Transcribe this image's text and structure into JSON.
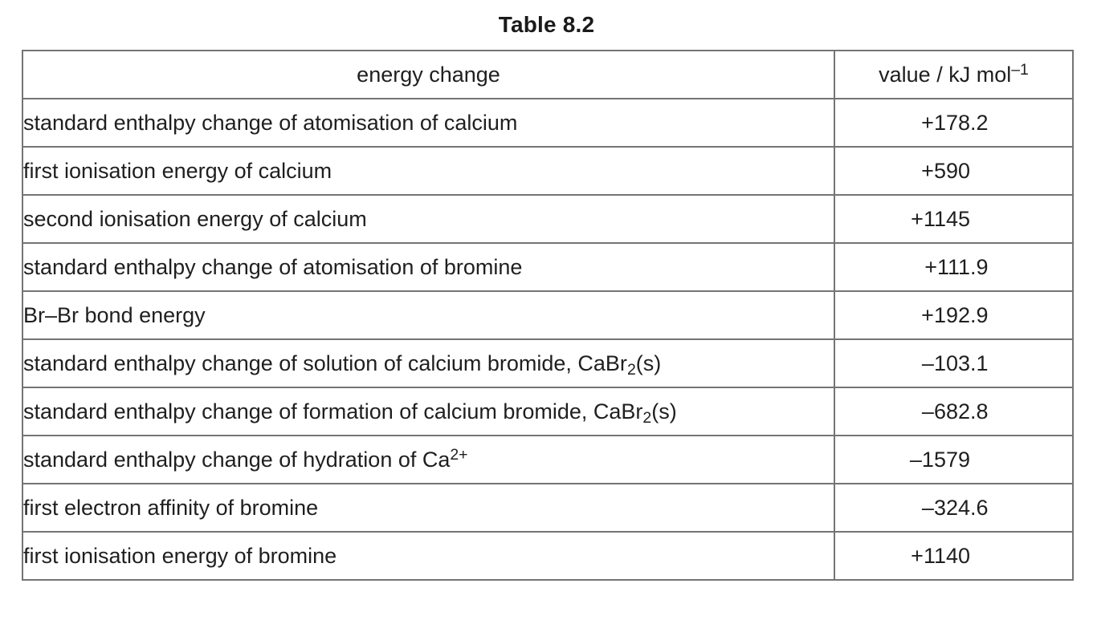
{
  "title": "Table 8.2",
  "colors": {
    "text": "#1f1f1f",
    "grid_lines": "#747476",
    "background": "#ffffff"
  },
  "table": {
    "header": {
      "energy_change": "energy change",
      "value_parts": [
        {
          "text": "value / kJ mol",
          "style": "n"
        },
        {
          "text": "–1",
          "style": "sup"
        }
      ]
    },
    "rows": [
      {
        "label_parts": [
          {
            "text": "standard enthalpy change of atomisation of calcium",
            "style": "n"
          }
        ],
        "value": "+178.2"
      },
      {
        "label_parts": [
          {
            "text": "first ionisation energy of calcium",
            "style": "n"
          }
        ],
        "value": "+590"
      },
      {
        "label_parts": [
          {
            "text": "second ionisation energy of calcium",
            "style": "n"
          }
        ],
        "value": "+1145"
      },
      {
        "label_parts": [
          {
            "text": "standard enthalpy change of atomisation of bromine",
            "style": "n"
          }
        ],
        "value": "+111.9"
      },
      {
        "label_parts": [
          {
            "text": "Br–Br bond energy",
            "style": "n"
          }
        ],
        "value": "+192.9"
      },
      {
        "label_parts": [
          {
            "text": "standard enthalpy change of solution of calcium bromide, CaBr",
            "style": "n"
          },
          {
            "text": "2",
            "style": "sub"
          },
          {
            "text": "(s)",
            "style": "n"
          }
        ],
        "value": "–103.1"
      },
      {
        "label_parts": [
          {
            "text": "standard enthalpy change of formation of calcium bromide, CaBr",
            "style": "n"
          },
          {
            "text": "2",
            "style": "sub"
          },
          {
            "text": "(s)",
            "style": "n"
          }
        ],
        "value": "–682.8"
      },
      {
        "label_parts": [
          {
            "text": "standard enthalpy change of hydration of Ca",
            "style": "n"
          },
          {
            "text": "2+",
            "style": "sup"
          }
        ],
        "value": "–1579"
      },
      {
        "label_parts": [
          {
            "text": "first electron affinity of bromine",
            "style": "n"
          }
        ],
        "value": "–324.6"
      },
      {
        "label_parts": [
          {
            "text": "first ionisation energy of bromine",
            "style": "n"
          }
        ],
        "value": "+1140"
      }
    ]
  }
}
